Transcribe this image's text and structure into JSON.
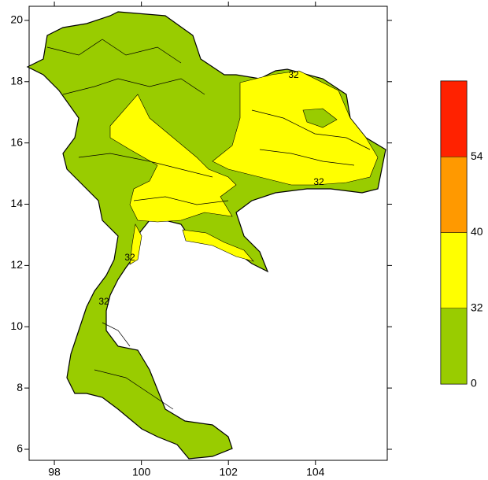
{
  "map": {
    "xlim": [
      97.42,
      105.65
    ],
    "ylim": [
      5.64,
      20.46
    ],
    "xticks": [
      98,
      100,
      102,
      104
    ],
    "yticks": [
      6,
      8,
      10,
      12,
      14,
      16,
      18,
      20
    ],
    "colorbar": {
      "levels": [
        0,
        32,
        40,
        54
      ],
      "colors": [
        "#99cc00",
        "#ffff00",
        "#ff9900",
        "#ff2200"
      ]
    },
    "contour_labels": [
      "32",
      "32",
      "32",
      "32"
    ]
  }
}
